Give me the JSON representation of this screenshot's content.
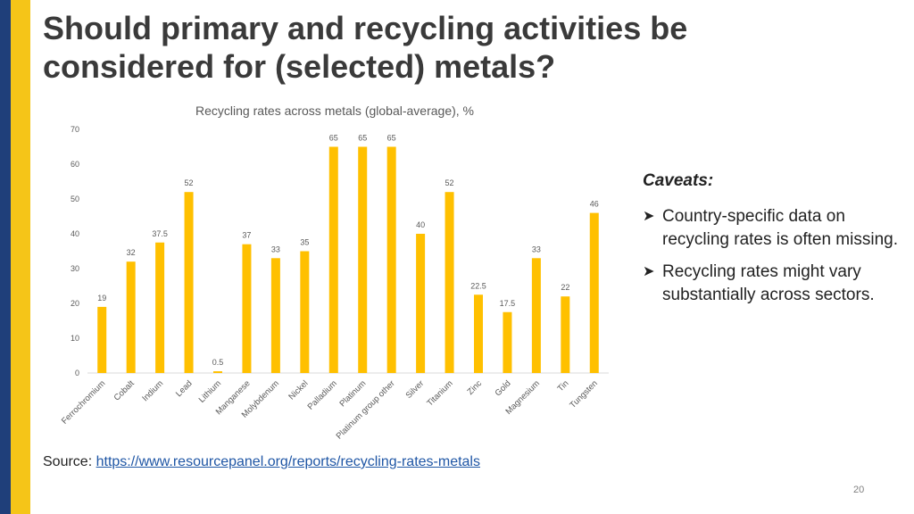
{
  "slide": {
    "title": "Should primary and recycling activities be considered for (selected) metals?",
    "page_number": "20"
  },
  "chart_data": {
    "type": "bar",
    "title": "Recycling rates across metals (global-average), %",
    "categories": [
      "Ferrochromium",
      "Cobalt",
      "Indium",
      "Lead",
      "Lithium",
      "Manganese",
      "Molybdenum",
      "Nickel",
      "Palladium",
      "Platinum",
      "Platinum group other",
      "Silver",
      "Titanium",
      "Zinc",
      "Gold",
      "Magnesium",
      "Tin",
      "Tungsten"
    ],
    "values": [
      19,
      32,
      37.5,
      52,
      0.5,
      37,
      33,
      35,
      65,
      65,
      65,
      40,
      52,
      22.5,
      17.5,
      33,
      22,
      46
    ],
    "value_labels": [
      "19",
      "32",
      "37.5",
      "52",
      "0.5",
      "37",
      "33",
      "35",
      "65",
      "65",
      "65",
      "40",
      "52",
      "22.5",
      "17.5",
      "33",
      "22",
      "46"
    ],
    "ylim": [
      0,
      70
    ],
    "yticks": [
      "0",
      "10",
      "20",
      "30",
      "40",
      "50",
      "60",
      "70"
    ],
    "xlabel": "",
    "ylabel": "",
    "grid": false,
    "bar_color": "#ffc000"
  },
  "caveats": {
    "heading": "Caveats:",
    "items": [
      "Country-specific data on recycling rates is often missing.",
      "Recycling rates might vary substantially across sectors."
    ]
  },
  "source": {
    "label": "Source:",
    "link_text": "https://www.resourcepanel.org/reports/recycling-rates-metals"
  },
  "colors": {
    "accent_blue": "#1f3f7a",
    "accent_gold": "#f5c518",
    "link": "#1f56a5"
  }
}
